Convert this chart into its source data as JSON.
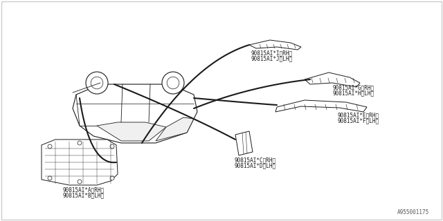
{
  "bg_color": "#ffffff",
  "border_color": "#cccccc",
  "line_color": "#1a1a1a",
  "text_color": "#1a1a1a",
  "watermark": "A955001175",
  "labels": {
    "top_right": [
      "90815AI*I〈RH〉",
      "90815AI*J〈LH〉"
    ],
    "mid_right_upper": [
      "90815AI*G〈RH〉",
      "90815AI*H〈LH〉"
    ],
    "mid_right_lower": [
      "90815AI*E〈RH〉",
      "90815AI*F〈LH〉"
    ],
    "center_lower": [
      "90815AI*C〈RH〉",
      "90815AI*D〈LH〉"
    ],
    "bottom_left": [
      "90815AI*A〈RH〉",
      "90815AI*B〈LH〉"
    ]
  }
}
